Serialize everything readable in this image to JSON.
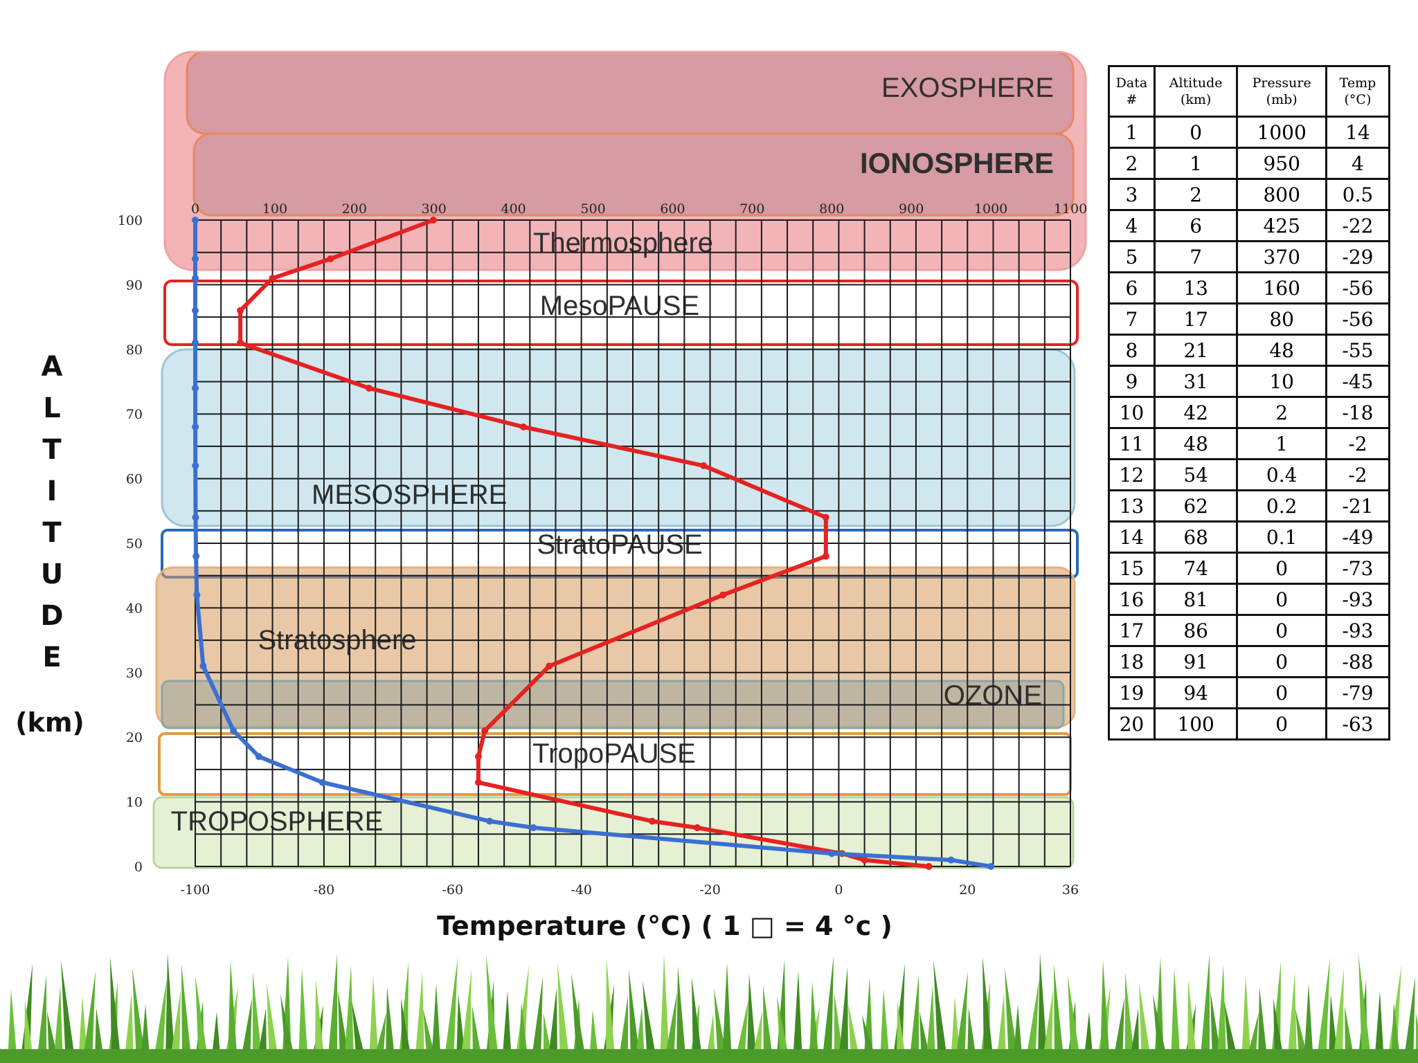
{
  "chart_data": {
    "type": "line",
    "x_title": "Temperature (°C) ( 1 □ = 4 °c )",
    "y_label_letters": [
      "A",
      "L",
      "T",
      "I",
      "T",
      "U",
      "D",
      "E"
    ],
    "y_unit": "(km)",
    "x_ticks_temperature": [
      "-100",
      "-80",
      "-60",
      "-40",
      "-20",
      "0",
      "20",
      "36"
    ],
    "x_ticks_pressure": [
      "0",
      "100",
      "200",
      "300",
      "400",
      "500",
      "600",
      "700",
      "800",
      "900",
      "1000",
      "1100"
    ],
    "y_ticks": [
      "0",
      "10",
      "20",
      "30",
      "40",
      "50",
      "60",
      "70",
      "80",
      "90",
      "100"
    ],
    "xlim_temperature": [
      -100,
      36
    ],
    "xlim_pressure": [
      0,
      1100
    ],
    "ylim": [
      0,
      100
    ],
    "grid": true,
    "series": [
      {
        "color": "#e52222",
        "axis": "temperature",
        "points": [
          [
            14,
            0
          ],
          [
            4,
            1
          ],
          [
            0.5,
            2
          ],
          [
            -22,
            6
          ],
          [
            -29,
            7
          ],
          [
            -56,
            13
          ],
          [
            -56,
            17
          ],
          [
            -55,
            21
          ],
          [
            -45,
            31
          ],
          [
            -18,
            42
          ],
          [
            -2,
            48
          ],
          [
            -2,
            54
          ],
          [
            -21,
            62
          ],
          [
            -49,
            68
          ],
          [
            -73,
            74
          ],
          [
            -93,
            81
          ],
          [
            -93,
            86
          ],
          [
            -88,
            91
          ],
          [
            -79,
            94
          ],
          [
            -63,
            100
          ]
        ]
      },
      {
        "color": "#3b6fd1",
        "axis": "pressure",
        "points": [
          [
            1000,
            0
          ],
          [
            950,
            1
          ],
          [
            800,
            2
          ],
          [
            425,
            6
          ],
          [
            370,
            7
          ],
          [
            160,
            13
          ],
          [
            80,
            17
          ],
          [
            48,
            21
          ],
          [
            10,
            31
          ],
          [
            2,
            42
          ],
          [
            1,
            48
          ],
          [
            0.4,
            54
          ],
          [
            0.2,
            62
          ],
          [
            0.1,
            68
          ],
          [
            0,
            74
          ],
          [
            0,
            81
          ],
          [
            0,
            86
          ],
          [
            0,
            91
          ],
          [
            0,
            94
          ],
          [
            0,
            100
          ]
        ]
      }
    ],
    "bands": [
      {
        "label": "EXOSPHERE",
        "fill": "#8f9bad",
        "stroke": "#e69a40"
      },
      {
        "label": "IONOSPHERE",
        "fill": "#8f9bad",
        "stroke": "#e69a40"
      },
      {
        "label": "Thermosphere",
        "fill": "#e8777c",
        "stroke": "#f0a0a4"
      },
      {
        "label": "MesoPAUSE",
        "fill": "none",
        "stroke": "#e52222"
      },
      {
        "label": "MESOSPHERE",
        "fill": "#a9d4e2",
        "stroke": "#9cc5d5"
      },
      {
        "label": "StratoPAUSE",
        "fill": "none",
        "stroke": "#2a68b8"
      },
      {
        "label": "Stratosphere",
        "fill": "#d79a5e",
        "stroke": "#e8b07a"
      },
      {
        "label": "OZONE",
        "fill": "#9aa79e",
        "stroke": "#8aa6a6"
      },
      {
        "label": "TropoPAUSE",
        "fill": "none",
        "stroke": "#e69a40"
      },
      {
        "label": "TROPOSPHERE",
        "fill": "#cfe3b0",
        "stroke": "#b9d39a"
      }
    ]
  },
  "table": {
    "headers": [
      "Data #",
      "Altitude (km)",
      "Pressure (mb)",
      "Temp (°C)"
    ],
    "rows": [
      [
        "1",
        "0",
        "1000",
        "14"
      ],
      [
        "2",
        "1",
        "950",
        "4"
      ],
      [
        "3",
        "2",
        "800",
        "0.5"
      ],
      [
        "4",
        "6",
        "425",
        "-22"
      ],
      [
        "5",
        "7",
        "370",
        "-29"
      ],
      [
        "6",
        "13",
        "160",
        "-56"
      ],
      [
        "7",
        "17",
        "80",
        "-56"
      ],
      [
        "8",
        "21",
        "48",
        "-55"
      ],
      [
        "9",
        "31",
        "10",
        "-45"
      ],
      [
        "10",
        "42",
        "2",
        "-18"
      ],
      [
        "11",
        "48",
        "1",
        "-2"
      ],
      [
        "12",
        "54",
        "0.4",
        "-2"
      ],
      [
        "13",
        "62",
        "0.2",
        "-21"
      ],
      [
        "14",
        "68",
        "0.1",
        "-49"
      ],
      [
        "15",
        "74",
        "0",
        "-73"
      ],
      [
        "16",
        "81",
        "0",
        "-93"
      ],
      [
        "17",
        "86",
        "0",
        "-93"
      ],
      [
        "18",
        "91",
        "0",
        "-88"
      ],
      [
        "19",
        "94",
        "0",
        "-79"
      ],
      [
        "20",
        "100",
        "0",
        "-63"
      ]
    ]
  }
}
